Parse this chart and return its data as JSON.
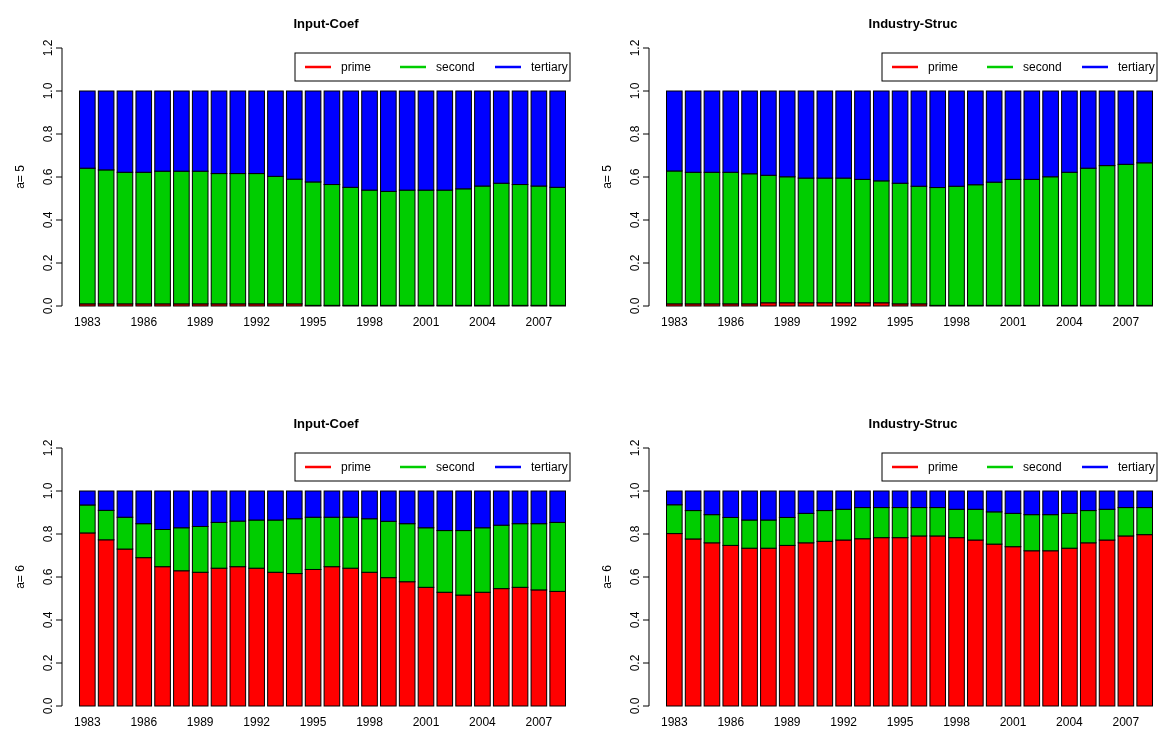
{
  "chart_data": [
    {
      "type": "bar",
      "stacked": true,
      "title": "Input-Coef",
      "ylabel": "a= 5",
      "legend": "top right",
      "ylim": [
        0,
        1.2
      ],
      "yticks": [
        {
          "value": 0,
          "label": "0.0"
        },
        {
          "value": 0.2,
          "label": "0.2"
        },
        {
          "value": 0.4,
          "label": "0.4"
        },
        {
          "value": 0.6,
          "label": "0.6"
        },
        {
          "value": 0.8,
          "label": "0.8"
        },
        {
          "value": 1,
          "label": "1.0"
        },
        {
          "value": 1.2,
          "label": "1.2"
        }
      ],
      "categories": [
        "1983",
        null,
        null,
        "1986",
        null,
        null,
        "1989",
        null,
        null,
        "1992",
        null,
        null,
        "1995",
        null,
        null,
        "1998",
        null,
        null,
        "2001",
        null,
        null,
        "2004",
        null,
        null,
        "2007",
        null
      ],
      "series": [
        {
          "name": "prime",
          "color": "#ff0000",
          "values": [
            0.01,
            0.01,
            0.01,
            0.01,
            0.01,
            0.01,
            0.01,
            0.01,
            0.01,
            0.01,
            0.01,
            0.01,
            0.003,
            0.003,
            0.003,
            0.003,
            0.003,
            0.003,
            0.003,
            0.003,
            0.003,
            0.003,
            0.003,
            0.003,
            0.003,
            0.003
          ]
        },
        {
          "name": "second",
          "color": "#00cd00",
          "values": [
            0.631,
            0.623,
            0.612,
            0.612,
            0.617,
            0.617,
            0.617,
            0.606,
            0.606,
            0.606,
            0.593,
            0.58,
            0.574,
            0.562,
            0.549,
            0.536,
            0.53,
            0.536,
            0.536,
            0.536,
            0.542,
            0.555,
            0.568,
            0.562,
            0.555,
            0.549
          ]
        },
        {
          "name": "tertiary",
          "color": "#0000ff",
          "values": [
            0.359,
            0.367,
            0.378,
            0.378,
            0.373,
            0.373,
            0.373,
            0.384,
            0.384,
            0.384,
            0.397,
            0.41,
            0.423,
            0.435,
            0.448,
            0.461,
            0.467,
            0.461,
            0.461,
            0.461,
            0.455,
            0.442,
            0.429,
            0.435,
            0.442,
            0.448
          ]
        }
      ]
    },
    {
      "type": "bar",
      "stacked": true,
      "title": "Industry-Struc",
      "ylabel": "a= 5",
      "legend": "top right",
      "ylim": [
        0,
        1.2
      ],
      "yticks": [
        {
          "value": 0,
          "label": "0.0"
        },
        {
          "value": 0.2,
          "label": "0.2"
        },
        {
          "value": 0.4,
          "label": "0.4"
        },
        {
          "value": 0.6,
          "label": "0.6"
        },
        {
          "value": 0.8,
          "label": "0.8"
        },
        {
          "value": 1,
          "label": "1.0"
        },
        {
          "value": 1.2,
          "label": "1.2"
        }
      ],
      "categories": [
        "1983",
        null,
        null,
        "1986",
        null,
        null,
        "1989",
        null,
        null,
        "1992",
        null,
        null,
        "1995",
        null,
        null,
        "1998",
        null,
        null,
        "2001",
        null,
        null,
        "2004",
        null,
        null,
        "2007",
        null
      ],
      "series": [
        {
          "name": "prime",
          "color": "#ff0000",
          "values": [
            0.01,
            0.01,
            0.01,
            0.01,
            0.01,
            0.015,
            0.015,
            0.015,
            0.015,
            0.015,
            0.015,
            0.015,
            0.01,
            0.01,
            0.003,
            0.003,
            0.003,
            0.003,
            0.003,
            0.003,
            0.003,
            0.003,
            0.003,
            0.003,
            0.003,
            0.003
          ]
        },
        {
          "name": "second",
          "color": "#00cd00",
          "values": [
            0.618,
            0.612,
            0.612,
            0.612,
            0.605,
            0.593,
            0.586,
            0.58,
            0.58,
            0.58,
            0.574,
            0.567,
            0.561,
            0.547,
            0.548,
            0.554,
            0.561,
            0.573,
            0.586,
            0.586,
            0.598,
            0.619,
            0.638,
            0.65,
            0.656,
            0.663
          ]
        },
        {
          "name": "tertiary",
          "color": "#0000ff",
          "values": [
            0.372,
            0.378,
            0.378,
            0.378,
            0.385,
            0.392,
            0.399,
            0.405,
            0.405,
            0.405,
            0.411,
            0.418,
            0.429,
            0.443,
            0.449,
            0.443,
            0.436,
            0.424,
            0.411,
            0.411,
            0.399,
            0.378,
            0.359,
            0.347,
            0.341,
            0.334
          ]
        }
      ]
    },
    {
      "type": "bar",
      "stacked": true,
      "title": "Input-Coef",
      "ylabel": "a= 6",
      "legend": "top right",
      "ylim": [
        0,
        1.2
      ],
      "yticks": [
        {
          "value": 0,
          "label": "0.0"
        },
        {
          "value": 0.2,
          "label": "0.2"
        },
        {
          "value": 0.4,
          "label": "0.4"
        },
        {
          "value": 0.6,
          "label": "0.6"
        },
        {
          "value": 0.8,
          "label": "0.8"
        },
        {
          "value": 1,
          "label": "1.0"
        },
        {
          "value": 1.2,
          "label": "1.2"
        }
      ],
      "categories": [
        "1983",
        null,
        null,
        "1986",
        null,
        null,
        "1989",
        null,
        null,
        "1992",
        null,
        null,
        "1995",
        null,
        null,
        "1998",
        null,
        null,
        "2001",
        null,
        null,
        "2004",
        null,
        null,
        "2007",
        null
      ],
      "series": [
        {
          "name": "prime",
          "color": "#ff0000",
          "values": [
            0.805,
            0.773,
            0.73,
            0.69,
            0.648,
            0.629,
            0.622,
            0.641,
            0.648,
            0.641,
            0.622,
            0.616,
            0.635,
            0.648,
            0.641,
            0.622,
            0.597,
            0.578,
            0.552,
            0.529,
            0.516,
            0.529,
            0.546,
            0.552,
            0.54,
            0.533
          ]
        },
        {
          "name": "second",
          "color": "#00cd00",
          "values": [
            0.13,
            0.137,
            0.148,
            0.158,
            0.173,
            0.2,
            0.213,
            0.213,
            0.212,
            0.224,
            0.243,
            0.255,
            0.243,
            0.23,
            0.237,
            0.249,
            0.262,
            0.27,
            0.277,
            0.287,
            0.3,
            0.3,
            0.295,
            0.296,
            0.308,
            0.321
          ]
        },
        {
          "name": "tertiary",
          "color": "#0000ff",
          "values": [
            0.065,
            0.09,
            0.122,
            0.152,
            0.179,
            0.171,
            0.165,
            0.146,
            0.14,
            0.135,
            0.135,
            0.129,
            0.122,
            0.122,
            0.122,
            0.129,
            0.141,
            0.152,
            0.171,
            0.184,
            0.184,
            0.171,
            0.159,
            0.152,
            0.152,
            0.146
          ]
        }
      ]
    },
    {
      "type": "bar",
      "stacked": true,
      "title": "Industry-Struc",
      "ylabel": "a= 6",
      "legend": "top right",
      "ylim": [
        0,
        1.2
      ],
      "yticks": [
        {
          "value": 0,
          "label": "0.0"
        },
        {
          "value": 0.2,
          "label": "0.2"
        },
        {
          "value": 0.4,
          "label": "0.4"
        },
        {
          "value": 0.6,
          "label": "0.6"
        },
        {
          "value": 0.8,
          "label": "0.8"
        },
        {
          "value": 1,
          "label": "1.0"
        },
        {
          "value": 1.2,
          "label": "1.2"
        }
      ],
      "categories": [
        "1983",
        null,
        null,
        "1986",
        null,
        null,
        "1989",
        null,
        null,
        "1992",
        null,
        null,
        "1995",
        null,
        null,
        "1998",
        null,
        null,
        "2001",
        null,
        null,
        "2004",
        null,
        null,
        "2007",
        null
      ],
      "series": [
        {
          "name": "prime",
          "color": "#ff0000",
          "values": [
            0.802,
            0.777,
            0.759,
            0.747,
            0.734,
            0.734,
            0.747,
            0.759,
            0.766,
            0.772,
            0.778,
            0.783,
            0.783,
            0.791,
            0.791,
            0.783,
            0.772,
            0.753,
            0.741,
            0.722,
            0.722,
            0.734,
            0.759,
            0.772,
            0.791,
            0.797
          ]
        },
        {
          "name": "second",
          "color": "#00cd00",
          "values": [
            0.134,
            0.132,
            0.131,
            0.13,
            0.131,
            0.131,
            0.13,
            0.137,
            0.143,
            0.143,
            0.145,
            0.14,
            0.14,
            0.132,
            0.132,
            0.132,
            0.143,
            0.15,
            0.155,
            0.168,
            0.168,
            0.162,
            0.15,
            0.143,
            0.132,
            0.126
          ]
        },
        {
          "name": "tertiary",
          "color": "#0000ff",
          "values": [
            0.064,
            0.091,
            0.11,
            0.123,
            0.135,
            0.135,
            0.123,
            0.104,
            0.091,
            0.085,
            0.077,
            0.077,
            0.077,
            0.077,
            0.077,
            0.085,
            0.085,
            0.097,
            0.104,
            0.11,
            0.11,
            0.104,
            0.091,
            0.085,
            0.077,
            0.077
          ]
        }
      ]
    }
  ]
}
